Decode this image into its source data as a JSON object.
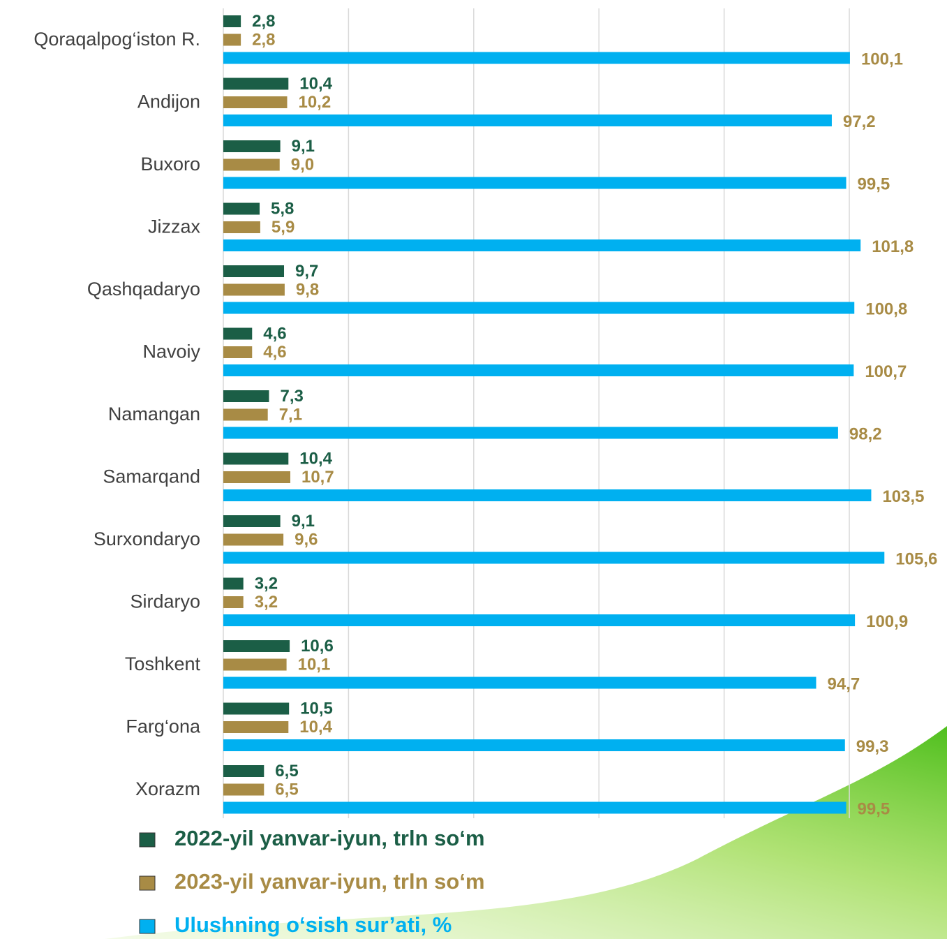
{
  "chart_data": {
    "type": "hbar",
    "categories": [
      "Qoraqalpog‘iston R.",
      "Andijon",
      "Buxoro",
      "Jizzax",
      "Qashqadaryo",
      "Navoiy",
      "Namangan",
      "Samarqand",
      "Surxondaryo",
      "Sirdaryo",
      "Toshkent",
      "Farg‘ona",
      "Xorazm"
    ],
    "series": [
      {
        "name": "2022-yil yanvar-iyun, trln so‘m",
        "color": "#1b5e46",
        "label_color": "#1b5e46",
        "values": [
          2.8,
          10.4,
          9.1,
          5.8,
          9.7,
          4.6,
          7.3,
          10.4,
          9.1,
          3.2,
          10.6,
          10.5,
          6.5
        ],
        "value_labels": [
          "2,8",
          "10,4",
          "9,1",
          "5,8",
          "9,7",
          "4,6",
          "7,3",
          "10,4",
          "9,1",
          "3,2",
          "10,6",
          "10,5",
          "6,5"
        ]
      },
      {
        "name": "2023-yil yanvar-iyun, trln so‘m",
        "color": "#a88b45",
        "label_color": "#a88b45",
        "values": [
          2.8,
          10.2,
          9.0,
          5.9,
          9.8,
          4.6,
          7.1,
          10.7,
          9.6,
          3.2,
          10.1,
          10.4,
          6.5
        ],
        "value_labels": [
          "2,8",
          "10,2",
          "9,0",
          "5,9",
          "9,8",
          "4,6",
          "7,1",
          "10,7",
          "9,6",
          "3,2",
          "10,1",
          "10,4",
          "6,5"
        ]
      },
      {
        "name": "Ulushning o‘sish sur’ati, %",
        "color": "#00b0f0",
        "label_color": "#a88b45",
        "values": [
          100.1,
          97.2,
          99.5,
          101.8,
          100.8,
          100.7,
          98.2,
          103.5,
          105.6,
          100.9,
          94.7,
          99.3,
          99.5
        ],
        "value_labels": [
          "100,1",
          "97,2",
          "99,5",
          "101,8",
          "100,8",
          "100,7",
          "98,2",
          "103,5",
          "105,6",
          "100,9",
          "94,7",
          "99,3",
          "99,5"
        ]
      }
    ],
    "xlim": [
      0,
      115
    ],
    "xticks": [
      0,
      20,
      40,
      60,
      80,
      100
    ],
    "grid": true
  }
}
